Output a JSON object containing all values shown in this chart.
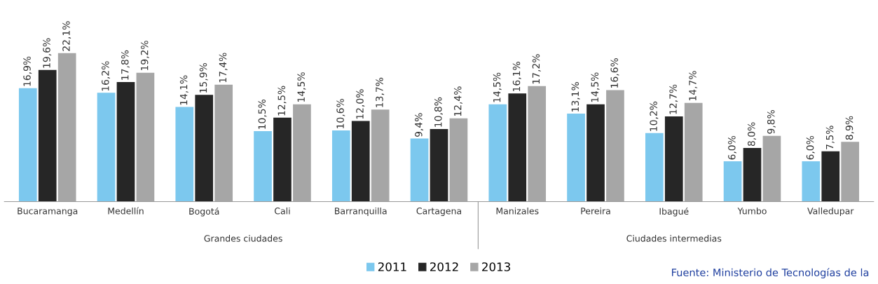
{
  "chart_data": {
    "type": "bar",
    "categories": [
      "Bucaramanga",
      "Medellín",
      "Bogotá",
      "Cali",
      "Barranquilla",
      "Cartagena",
      "Manizales",
      "Pereira",
      "Ibagué",
      "Yumbo",
      "Valledupar"
    ],
    "series": [
      {
        "name": "2011",
        "color": "#7cc8ee",
        "values": [
          16.9,
          16.2,
          14.1,
          10.5,
          10.6,
          9.4,
          14.5,
          13.1,
          10.2,
          6.0,
          6.0
        ],
        "value_labels": [
          "16,9%",
          "16,2%",
          "14,1%",
          "10,5%",
          "10,6%",
          "9,4%",
          "14,5%",
          "13,1%",
          "10,2%",
          "6,0%",
          "6,0%"
        ]
      },
      {
        "name": "2012",
        "color": "#262626",
        "values": [
          19.6,
          17.8,
          15.9,
          12.5,
          12.0,
          10.8,
          16.1,
          14.5,
          12.7,
          8.0,
          7.5
        ],
        "value_labels": [
          "19,6%",
          "17,8%",
          "15,9%",
          "12,5%",
          "12,0%",
          "10,8%",
          "16,1%",
          "14,5%",
          "12,7%",
          "8,0%",
          "7,5%"
        ]
      },
      {
        "name": "2013",
        "color": "#a6a6a6",
        "values": [
          22.1,
          19.2,
          17.4,
          14.5,
          13.7,
          12.4,
          17.2,
          16.6,
          14.7,
          9.8,
          8.9
        ],
        "value_labels": [
          "22,1%",
          "19,2%",
          "17,4%",
          "14,5%",
          "13,7%",
          "12,4%",
          "17,2%",
          "16,6%",
          "14,7%",
          "9,8%",
          "8,9%"
        ]
      }
    ],
    "annotations": [
      "Grandes ciudades",
      "Ciudades intermedias",
      "Fuente: Ministerio de Tecnologías de la"
    ],
    "legend": "bottom",
    "grid": false
  }
}
